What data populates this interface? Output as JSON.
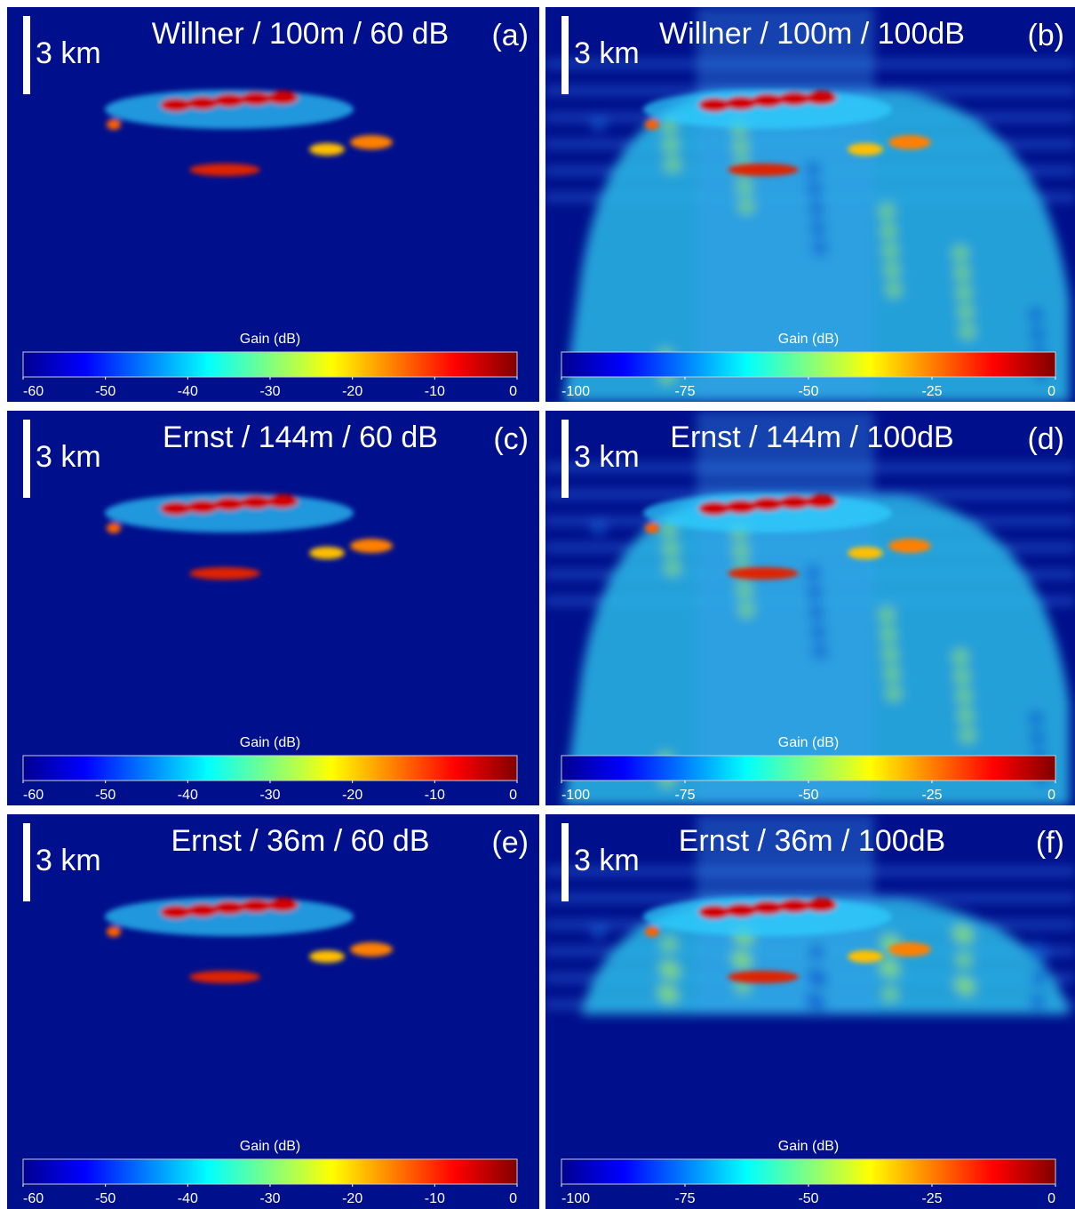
{
  "panels": [
    {
      "title": "Willner / 100m / 60 dB",
      "label": "(a)",
      "scale_bar": "3 km",
      "colorbar": {
        "label": "Gain (dB)",
        "ticks": [
          -60,
          -50,
          -40,
          -30,
          -20,
          -10,
          0
        ]
      }
    },
    {
      "title": "Willner / 100m / 100dB",
      "label": "(b)",
      "scale_bar": "3 km",
      "colorbar": {
        "label": "Gain (dB)",
        "ticks": [
          -100,
          -75,
          -50,
          -25,
          0
        ]
      }
    },
    {
      "title": "Ernst / 144m / 60 dB",
      "label": "(c)",
      "scale_bar": "3 km",
      "colorbar": {
        "label": "Gain (dB)",
        "ticks": [
          -60,
          -50,
          -40,
          -30,
          -20,
          -10,
          0
        ]
      }
    },
    {
      "title": "Ernst / 144m / 100dB",
      "label": "(d)",
      "scale_bar": "3 km",
      "colorbar": {
        "label": "Gain (dB)",
        "ticks": [
          -100,
          -75,
          -50,
          -25,
          0
        ]
      }
    },
    {
      "title": "Ernst / 36m / 60 dB",
      "label": "(e)",
      "scale_bar": "3 km",
      "colorbar": {
        "label": "Gain (dB)",
        "ticks": [
          -60,
          -50,
          -40,
          -30,
          -20,
          -10,
          0
        ]
      }
    },
    {
      "title": "Ernst / 36m / 100dB",
      "label": "(f)",
      "scale_bar": "3 km",
      "colorbar": {
        "label": "Gain (dB)",
        "ticks": [
          -100,
          -75,
          -50,
          -25,
          0
        ]
      }
    }
  ]
}
